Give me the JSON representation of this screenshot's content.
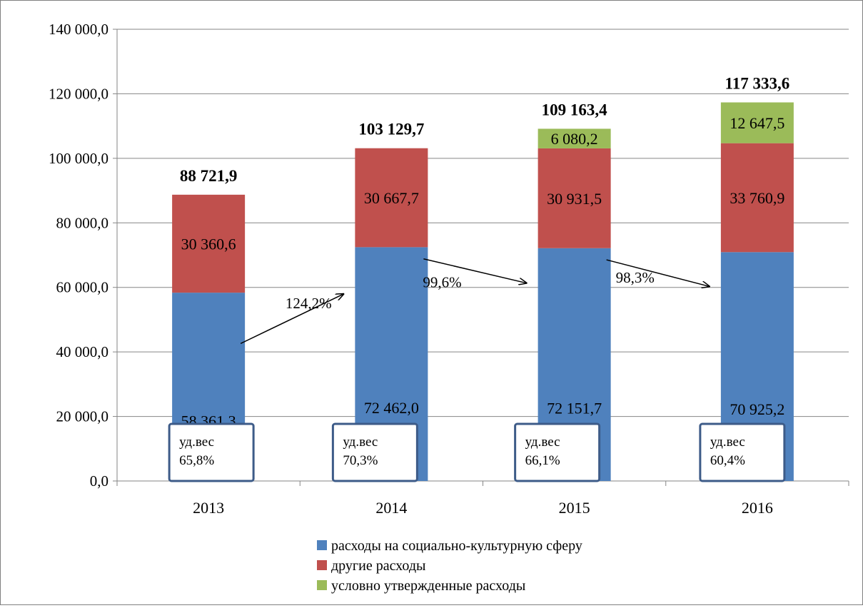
{
  "chart_data": {
    "type": "bar",
    "stacked": true,
    "categories": [
      "2013",
      "2014",
      "2015",
      "2016"
    ],
    "series": [
      {
        "name": "расходы на социально-культурную сферу",
        "color": "#4F81BD",
        "values": [
          58361.3,
          72462.0,
          72151.7,
          70925.2
        ],
        "labels": [
          "58 361,3",
          "72 462,0",
          "72 151,7",
          "70 925,2"
        ]
      },
      {
        "name": "другие расходы",
        "color": "#C0504D",
        "values": [
          30360.6,
          30667.7,
          30931.5,
          33760.9
        ],
        "labels": [
          "30 360,6",
          "30 667,7",
          "30 931,5",
          "33 760,9"
        ]
      },
      {
        "name": "условно утвержденные расходы",
        "color": "#9BBB59",
        "values": [
          null,
          null,
          6080.2,
          12647.5
        ],
        "labels": [
          "",
          "",
          "6 080,2",
          "12 647,5"
        ]
      }
    ],
    "totals": [
      88721.9,
      103129.7,
      109163.4,
      117333.6
    ],
    "total_labels": [
      "88 721,9",
      "103 129,7",
      "109 163,4",
      "117 333,6"
    ],
    "share_labels": [
      [
        "уд.вес",
        "65,8%"
      ],
      [
        "уд.вес",
        "70,3%"
      ],
      [
        "уд.вес",
        "66,1%"
      ],
      [
        "уд.вес",
        "60,4%"
      ]
    ],
    "growth_labels": [
      "124,2%",
      "99,6%",
      "98,3%"
    ],
    "ylim": [
      0,
      140000
    ],
    "yticks": [
      0,
      20000,
      40000,
      60000,
      80000,
      100000,
      120000,
      140000
    ],
    "ytick_labels": [
      "0,0",
      "20 000,0",
      "40 000,0",
      "60 000,0",
      "80 000,0",
      "100 000,0",
      "120 000,0",
      "140 000,0"
    ],
    "grid": true,
    "legend_position": "bottom",
    "title": "",
    "xlabel": "",
    "ylabel": ""
  }
}
